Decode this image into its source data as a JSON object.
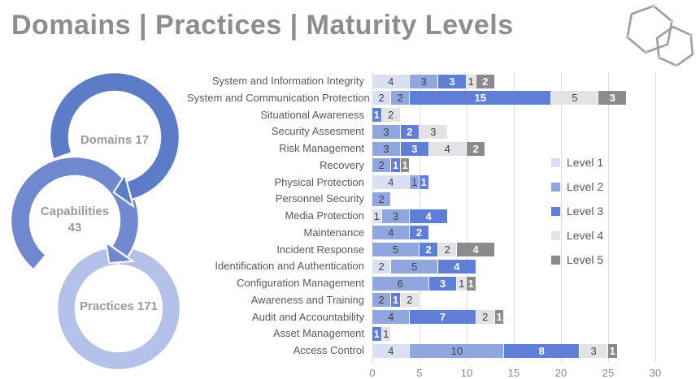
{
  "title": "Domains | Practices | Maturity Levels",
  "logo": {
    "name": "hexagon-molecule-logo"
  },
  "cycle": {
    "text_color": "#9a9a9a",
    "rings": [
      {
        "label": "Domains 17",
        "label2": "",
        "color": "#5c7cc8"
      },
      {
        "label": "Capabilities",
        "label2": "43",
        "color": "#7089ce"
      },
      {
        "label": "Practices 171",
        "label2": "",
        "color": "#b4c2e9"
      }
    ]
  },
  "chart_data": {
    "type": "bar",
    "orientation": "horizontal",
    "stacked": true,
    "title": "",
    "xlabel": "",
    "ylabel": "",
    "xlim": [
      0,
      30
    ],
    "x_ticks": [
      0,
      5,
      10,
      15,
      20,
      25,
      30
    ],
    "grid": true,
    "legend_position": "right",
    "categories": [
      "System and Information Integrity",
      "System and Communication Protection",
      "Situational Awareness",
      "Security Assesment",
      "Risk Management",
      "Recovery",
      "Physical Protection",
      "Personnel Security",
      "Media Protection",
      "Maintenance",
      "Incident Response",
      "Identification and Authentication",
      "Configuration Management",
      "Awareness and Training",
      "Audit and Accountability",
      "Asset Management",
      "Access Control"
    ],
    "series": [
      {
        "name": "Level 1",
        "color": "#d9e0f4",
        "label_style": "dark",
        "values": [
          4,
          2,
          0,
          0,
          0,
          0,
          4,
          0,
          1,
          0,
          0,
          2,
          0,
          0,
          0,
          0,
          4
        ]
      },
      {
        "name": "Level 2",
        "color": "#90a6de",
        "label_style": "dark",
        "values": [
          3,
          2,
          0,
          3,
          3,
          2,
          1,
          2,
          3,
          4,
          5,
          5,
          6,
          2,
          4,
          0,
          10
        ]
      },
      {
        "name": "Level 3",
        "color": "#5f7ed8",
        "label_style": "light",
        "values": [
          3,
          15,
          1,
          2,
          3,
          1,
          1,
          0,
          4,
          2,
          2,
          4,
          3,
          1,
          7,
          1,
          8
        ]
      },
      {
        "name": "Level 4",
        "color": "#e3e3e5",
        "label_style": "dark",
        "values": [
          1,
          5,
          2,
          3,
          4,
          0,
          0,
          0,
          0,
          0,
          2,
          0,
          1,
          2,
          2,
          1,
          3
        ]
      },
      {
        "name": "Level 5",
        "color": "#8b8b8d",
        "label_style": "light",
        "values": [
          2,
          3,
          0,
          0,
          2,
          1,
          0,
          0,
          0,
          0,
          4,
          0,
          1,
          0,
          1,
          0,
          1
        ]
      }
    ]
  }
}
